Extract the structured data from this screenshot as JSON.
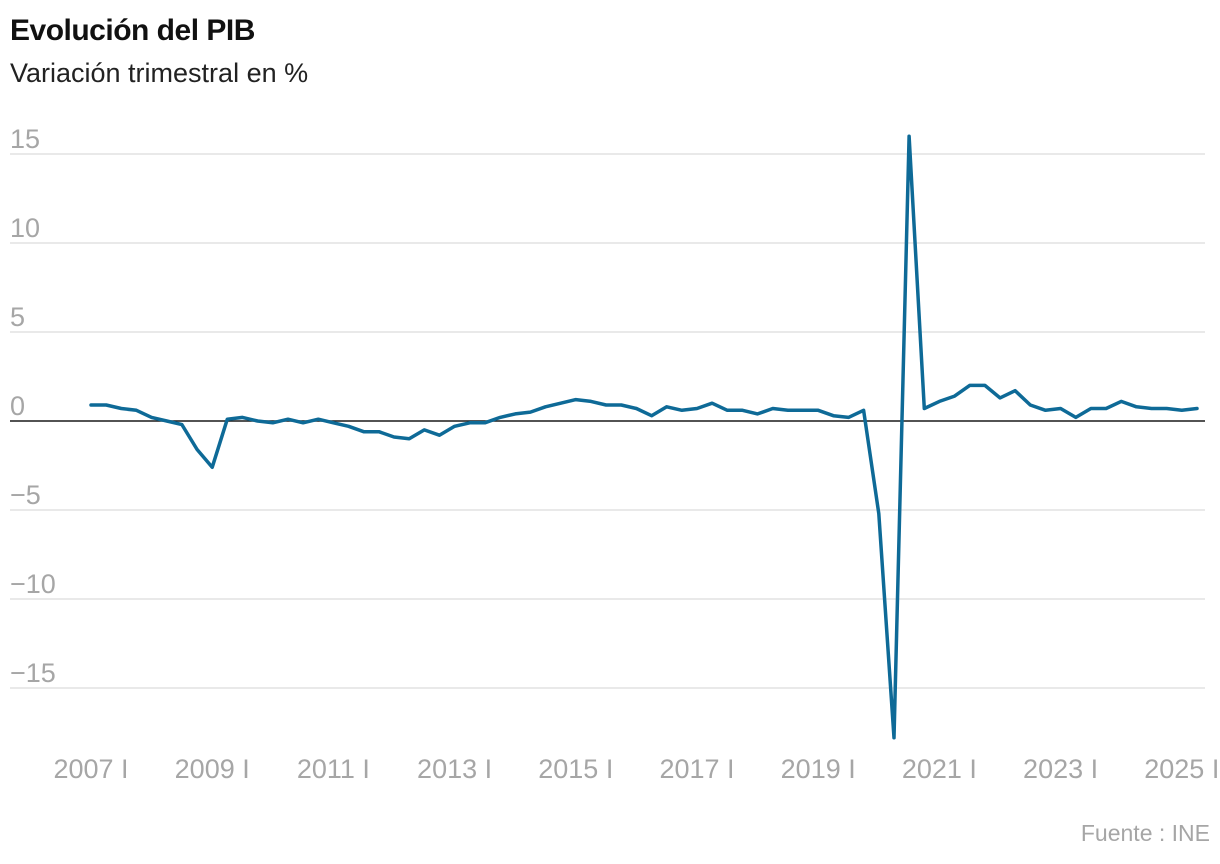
{
  "chart_data": {
    "type": "line",
    "title": "Evolución del PIB",
    "subtitle": "Variación trimestral en %",
    "source": "Fuente : INE",
    "x_ticks": [
      "2007 I",
      "2009 I",
      "2011 I",
      "2013 I",
      "2015 I",
      "2017 I",
      "2019 I",
      "2021 I",
      "2023 I",
      "2025 I"
    ],
    "y_ticks": [
      15,
      10,
      5,
      0,
      -5,
      -10,
      -15
    ],
    "y_tick_labels": [
      "15",
      "10",
      "5",
      "0",
      "−5",
      "−10",
      "−15"
    ],
    "ylim": [
      -17.8,
      16.8
    ],
    "grid": "horizontal",
    "color": "#0e6a97",
    "zero_line_color": "#1a1a1a",
    "series": [
      {
        "x": [
          "2007 I",
          "2007 II",
          "2007 III",
          "2007 IV",
          "2008 I",
          "2008 II",
          "2008 III",
          "2008 IV",
          "2009 I",
          "2009 II",
          "2009 III",
          "2009 IV",
          "2010 I",
          "2010 II",
          "2010 III",
          "2010 IV",
          "2011 I",
          "2011 II",
          "2011 III",
          "2011 IV",
          "2012 I",
          "2012 II",
          "2012 III",
          "2012 IV",
          "2013 I",
          "2013 II",
          "2013 III",
          "2013 IV",
          "2014 I",
          "2014 II",
          "2014 III",
          "2014 IV",
          "2015 I",
          "2015 II",
          "2015 III",
          "2015 IV",
          "2016 I",
          "2016 II",
          "2016 III",
          "2016 IV",
          "2017 I",
          "2017 II",
          "2017 III",
          "2017 IV",
          "2018 I",
          "2018 II",
          "2018 III",
          "2018 IV",
          "2019 I",
          "2019 II",
          "2019 III",
          "2019 IV",
          "2020 I",
          "2020 II",
          "2020 III",
          "2020 IV",
          "2021 I",
          "2021 II",
          "2021 III",
          "2021 IV",
          "2022 I",
          "2022 II",
          "2022 III",
          "2022 IV",
          "2023 I",
          "2023 II",
          "2023 III",
          "2023 IV",
          "2024 I",
          "2024 II",
          "2024 III",
          "2024 IV",
          "2025 I",
          "2025 II"
        ],
        "values": [
          0.9,
          0.9,
          0.7,
          0.6,
          0.2,
          0.0,
          -0.2,
          -1.6,
          -2.6,
          0.1,
          0.2,
          0.0,
          -0.1,
          0.1,
          -0.1,
          0.1,
          -0.1,
          -0.3,
          -0.6,
          -0.6,
          -0.9,
          -1.0,
          -0.5,
          -0.8,
          -0.3,
          -0.1,
          -0.1,
          0.2,
          0.4,
          0.5,
          0.8,
          1.0,
          1.2,
          1.1,
          0.9,
          0.9,
          0.7,
          0.3,
          0.8,
          0.6,
          0.7,
          1.0,
          0.6,
          0.6,
          0.4,
          0.7,
          0.6,
          0.6,
          0.6,
          0.3,
          0.2,
          0.6,
          -5.2,
          -17.8,
          16.0,
          0.7,
          1.1,
          1.4,
          2.0,
          2.0,
          1.3,
          1.7,
          0.9,
          0.6,
          0.7,
          0.2,
          0.7,
          0.7,
          1.1,
          0.8,
          0.7,
          0.7,
          0.6,
          0.7
        ]
      }
    ]
  }
}
